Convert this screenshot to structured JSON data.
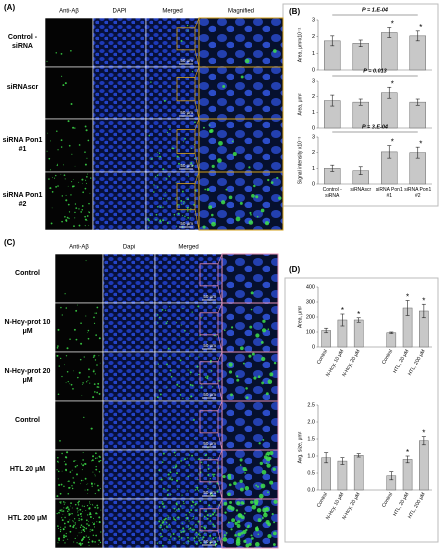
{
  "panel_a": {
    "label": "(A)",
    "columns": [
      "Anti-Aβ",
      "DAPI",
      "Merged",
      "Magnified"
    ],
    "rows": [
      "Control -siRNA",
      "siRNAscr",
      "siRNA Pon1 #1",
      "siRNA Pon1 #2"
    ],
    "scale_bar": "50 μm"
  },
  "panel_b": {
    "label": "(B)"
  },
  "panel_c": {
    "label": "(C)",
    "columns": [
      "Anti-Aβ",
      "Dapi",
      "Merged"
    ],
    "rows": [
      "Control",
      "N-Hcy-prot 10 μM",
      "N-Hcy-prot 20 μM",
      "Control",
      "HTL 20 μM",
      "HTL 200 μM"
    ],
    "scale_bar": "50 μm"
  },
  "panel_d": {
    "label": "(D)"
  },
  "chart_data": [
    {
      "type": "bar",
      "ylabel": "Area, μm²x10⁻²",
      "annotation": "P = 1.E-04",
      "values": [
        1.75,
        1.6,
        2.25,
        2.05
      ],
      "errors": [
        0.3,
        0.2,
        0.3,
        0.3
      ],
      "stars": [
        null,
        null,
        "*",
        "*"
      ],
      "ylim": [
        0,
        3
      ],
      "yticks": [
        0,
        1,
        2,
        3
      ],
      "color": "#c8c8c8"
    },
    {
      "type": "bar",
      "ylabel": "Area, μm²",
      "annotation": "P = 0.013",
      "values": [
        1.75,
        1.65,
        2.25,
        1.65
      ],
      "errors": [
        0.35,
        0.2,
        0.35,
        0.2
      ],
      "stars": [
        null,
        null,
        "*",
        null
      ],
      "ylim": [
        0,
        3
      ],
      "yticks": [
        0,
        1,
        2,
        3
      ],
      "color": "#c8c8c8"
    },
    {
      "type": "bar",
      "ylabel": "Signal intensity x10⁻³",
      "annotation": "P = 3.E-04",
      "categories": [
        "Control -siRNA",
        "siRNAscr",
        "siRNA Pon1 #1",
        "siRNA Pon1 #2"
      ],
      "values": [
        1.0,
        0.85,
        2.05,
        2.0
      ],
      "errors": [
        0.2,
        0.25,
        0.4,
        0.35
      ],
      "stars": [
        null,
        null,
        "*",
        "*"
      ],
      "ylim": [
        0,
        3
      ],
      "yticks": [
        0,
        1,
        2,
        3
      ],
      "color": "#c8c8c8"
    },
    {
      "type": "bar",
      "ylabel": "Area, μm²",
      "categories": [
        "Control",
        "N-Hcy, 10 μM",
        "N-Hcy, 20 μM",
        null,
        "Control",
        "HTL, 20 μM",
        "HTL, 200 μM"
      ],
      "values": [
        110,
        180,
        180,
        null,
        95,
        260,
        240
      ],
      "errors": [
        15,
        40,
        15,
        null,
        5,
        50,
        45
      ],
      "stars": [
        null,
        "*",
        "*",
        null,
        null,
        "*",
        "*"
      ],
      "ylim": [
        0,
        400
      ],
      "yticks": [
        0,
        100,
        200,
        300,
        400
      ],
      "color": "#c8c8c8"
    },
    {
      "type": "bar",
      "ylabel": "Avg. size, μm²",
      "categories": [
        "Control",
        "N-Hcy, 10 μM",
        "N-Hcy, 20 μM",
        null,
        "Control",
        "HTL, 20 μM",
        "HTL, 200 μM"
      ],
      "values": [
        0.95,
        0.85,
        1.02,
        null,
        0.42,
        0.9,
        1.45
      ],
      "errors": [
        0.15,
        0.1,
        0.05,
        null,
        0.12,
        0.1,
        0.12
      ],
      "stars": [
        null,
        null,
        null,
        null,
        null,
        "*",
        "*"
      ],
      "ylim": [
        0,
        2.5
      ],
      "yticks": [
        {
          "value": 0,
          "label": "0.0"
        },
        0.5,
        {
          "value": 1,
          "label": "1.0"
        },
        1.5,
        {
          "value": 2,
          "label": "2.0"
        },
        2.5
      ],
      "color": "#c8c8c8"
    }
  ]
}
